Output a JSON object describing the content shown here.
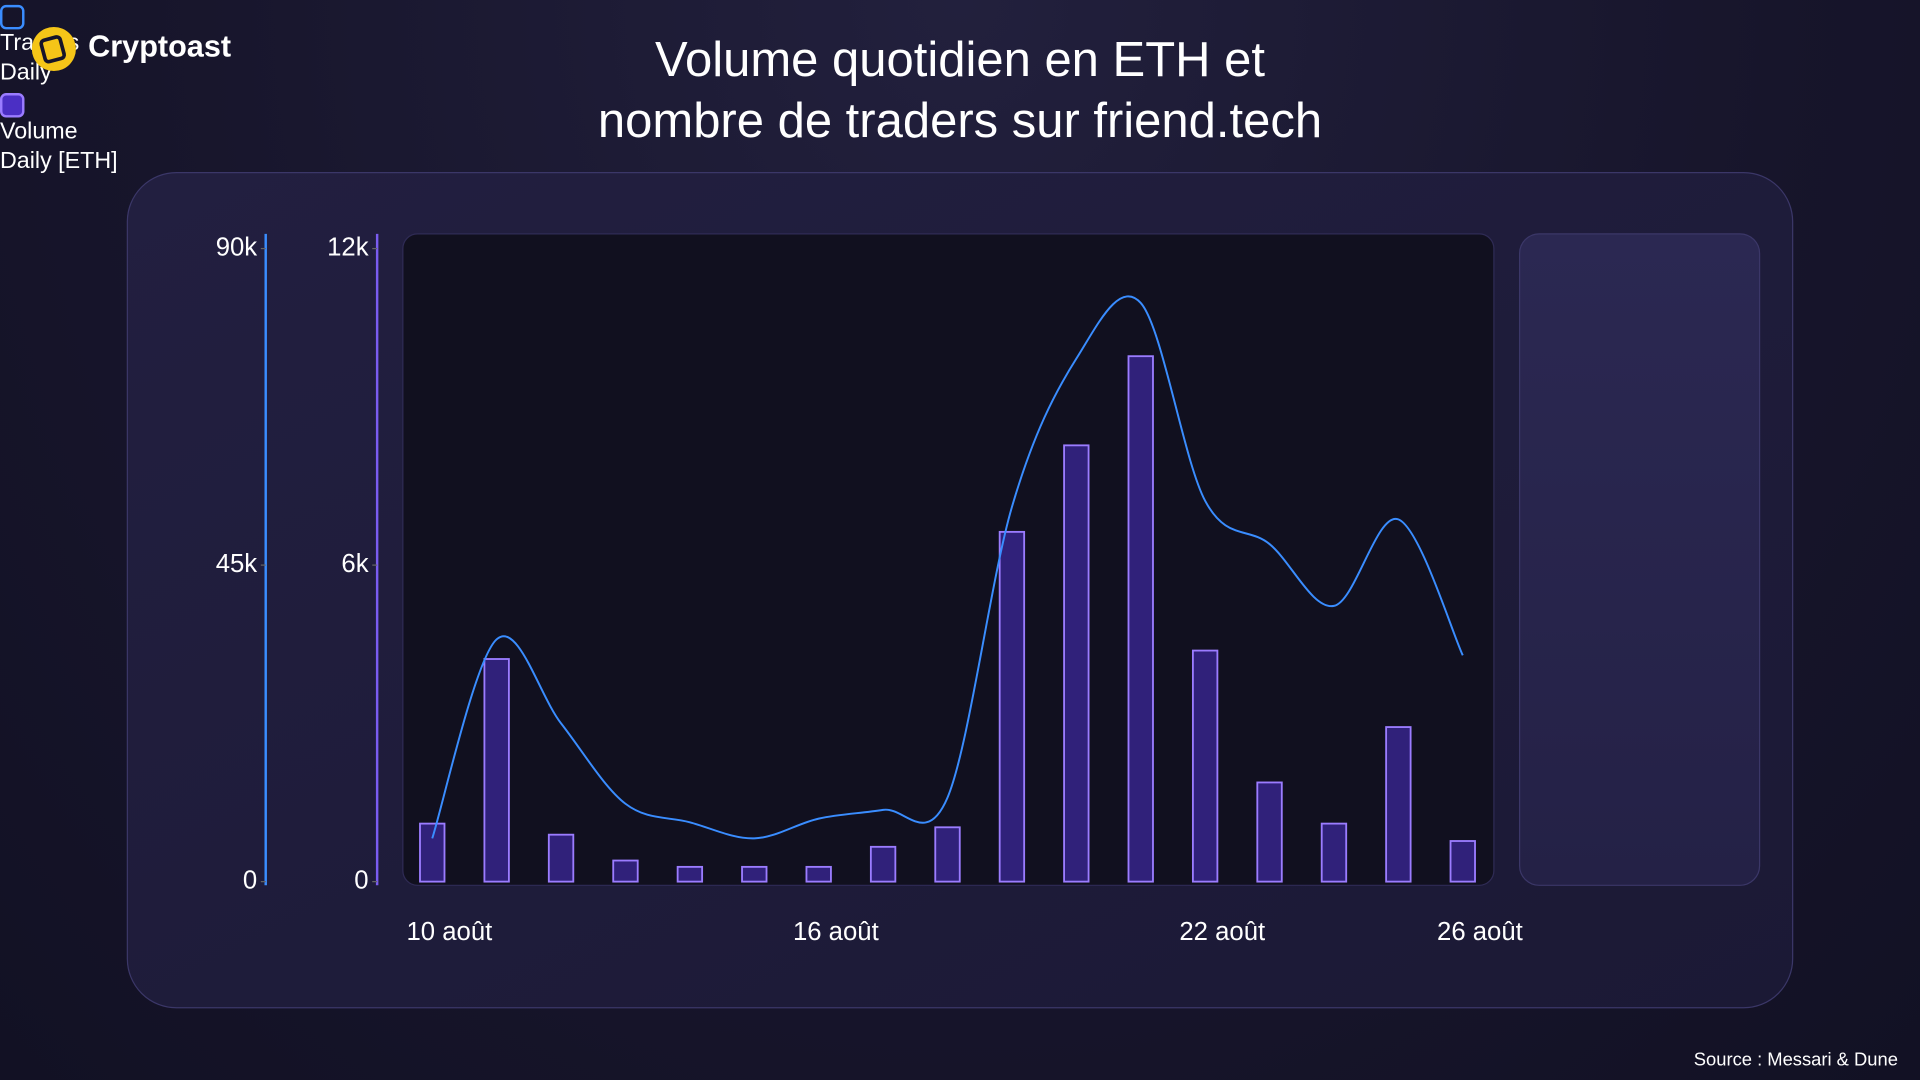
{
  "brand": "Cryptoast",
  "source": "Source : Messari & Dune",
  "chart_data": {
    "type": "combo",
    "title": "Volume quotidien en ETH et nombre de traders sur friend.tech",
    "categories": [
      "10 août",
      null,
      null,
      null,
      null,
      null,
      "16 août",
      null,
      null,
      null,
      null,
      null,
      "22 août",
      null,
      null,
      null,
      "26 août"
    ],
    "series": [
      {
        "name": "Traders Daily",
        "type": "line",
        "axis": "y2",
        "color": "#3a8dff",
        "values": [
          6150,
          34450,
          22500,
          11070,
          8440,
          6150,
          8960,
          10200,
          11950,
          53260,
          74350,
          82270,
          54140,
          47990,
          39200,
          51500,
          32170
        ]
      },
      {
        "name": "Volume Daily [ETH]",
        "type": "bar",
        "axis": "y",
        "color": "#4b2fc4",
        "values": [
          1100,
          4220,
          890,
          400,
          280,
          280,
          280,
          660,
          1030,
          6630,
          8270,
          9960,
          4380,
          1880,
          1100,
          2930,
          770
        ]
      }
    ],
    "ylim": [
      0,
      12000
    ],
    "yticks": [
      0,
      {
        "value": 6000,
        "label": "6k"
      },
      {
        "value": 12000,
        "label": "12k"
      }
    ],
    "y2lim": [
      0,
      90000
    ],
    "y2ticks": [
      0,
      {
        "value": 45000,
        "label": "45k"
      },
      {
        "value": 90000,
        "label": "90k"
      }
    ],
    "grid": false,
    "legend": "right"
  }
}
